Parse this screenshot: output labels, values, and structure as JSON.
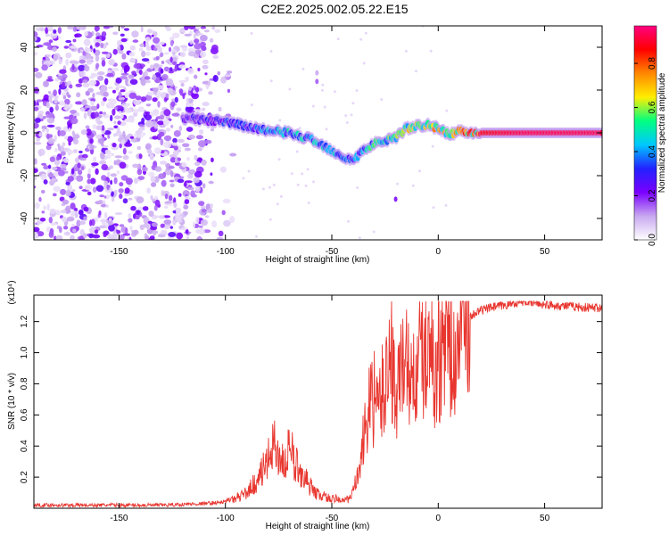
{
  "title": "C2E2.2025.002.05.22.E15",
  "colors": {
    "snr_line": "#e8362f",
    "colormap": [
      "#ffffff",
      "#c8a8f0",
      "#7a00ff",
      "#2222ff",
      "#00c8ff",
      "#00ff80",
      "#ffee00",
      "#ff8800",
      "#ff0000",
      "#ff0080"
    ]
  },
  "chart_data": [
    {
      "type": "heatmap",
      "xlabel": "Height of straight line (km)",
      "ylabel": "Frequency (Hz)",
      "xlim": [
        -190,
        77
      ],
      "ylim": [
        -50,
        50
      ],
      "xticks": [
        -150,
        -100,
        -50,
        0,
        50
      ],
      "yticks": [
        -40,
        -20,
        0,
        20,
        40
      ],
      "colorbar": {
        "label": "Normalized spectral amplitude",
        "range": [
          0,
          0.97
        ],
        "ticks": [
          0.0,
          0.2,
          0.4,
          0.6,
          0.8
        ]
      },
      "ridge": [
        {
          "x": -120,
          "y": 7,
          "a": 0.25
        },
        {
          "x": -110,
          "y": 6,
          "a": 0.3
        },
        {
          "x": -100,
          "y": 5,
          "a": 0.35
        },
        {
          "x": -90,
          "y": 3,
          "a": 0.4
        },
        {
          "x": -80,
          "y": 1,
          "a": 0.45
        },
        {
          "x": -70,
          "y": 0,
          "a": 0.5
        },
        {
          "x": -60,
          "y": -3,
          "a": 0.5
        },
        {
          "x": -50,
          "y": -8,
          "a": 0.5
        },
        {
          "x": -45,
          "y": -11,
          "a": 0.45
        },
        {
          "x": -40,
          "y": -13,
          "a": 0.4
        },
        {
          "x": -35,
          "y": -8,
          "a": 0.5
        },
        {
          "x": -30,
          "y": -5,
          "a": 0.55
        },
        {
          "x": -20,
          "y": -2,
          "a": 0.6
        },
        {
          "x": -15,
          "y": 2,
          "a": 0.65
        },
        {
          "x": -10,
          "y": 3,
          "a": 0.7
        },
        {
          "x": -5,
          "y": 4,
          "a": 0.7
        },
        {
          "x": 0,
          "y": 2,
          "a": 0.75
        },
        {
          "x": 5,
          "y": -1,
          "a": 0.7
        },
        {
          "x": 10,
          "y": 1,
          "a": 0.8
        },
        {
          "x": 20,
          "y": 0,
          "a": 0.9
        },
        {
          "x": 40,
          "y": 0,
          "a": 0.95
        },
        {
          "x": 77,
          "y": 0,
          "a": 0.95
        }
      ]
    },
    {
      "type": "line",
      "xlabel": "Height of straight line (km)",
      "ylabel": "SNR (10 * v/v)",
      "yscale_label": "(x10⁴)",
      "xlim": [
        -190,
        77
      ],
      "ylim": [
        0,
        1.37
      ],
      "xticks": [
        -150,
        -100,
        -50,
        0,
        50
      ],
      "yticks": [
        0.2,
        0.4,
        0.6,
        0.8,
        1.0,
        1.2
      ],
      "series": [
        {
          "x": [
            -190,
            -160,
            -130,
            -110,
            -100,
            -95,
            -90,
            -85,
            -80,
            -78,
            -75,
            -72,
            -70,
            -68,
            -65,
            -62,
            -60,
            -58,
            -55,
            -50,
            -45,
            -42,
            -40,
            -38,
            -36,
            -34,
            -32,
            -30,
            -28,
            -26,
            -24,
            -22,
            -20,
            -18,
            -16,
            -14,
            -12,
            -10,
            -8,
            -6,
            -4,
            -2,
            0,
            2,
            4,
            6,
            8,
            10,
            12,
            15,
            20,
            25,
            30,
            35,
            40,
            50,
            60,
            70,
            77
          ],
          "y": [
            0.02,
            0.02,
            0.02,
            0.03,
            0.04,
            0.06,
            0.1,
            0.18,
            0.3,
            0.42,
            0.35,
            0.28,
            0.38,
            0.3,
            0.25,
            0.18,
            0.14,
            0.1,
            0.08,
            0.06,
            0.05,
            0.06,
            0.1,
            0.2,
            0.35,
            0.55,
            0.65,
            0.7,
            0.62,
            0.75,
            0.88,
            1.0,
            0.7,
            0.85,
            0.9,
            0.95,
            0.78,
            0.88,
            1.02,
            0.95,
            1.05,
            0.9,
            1.0,
            0.95,
            1.1,
            1.05,
            0.85,
            1.15,
            1.2,
            1.24,
            1.27,
            1.29,
            1.3,
            1.32,
            1.33,
            1.31,
            1.3,
            1.29,
            1.29
          ]
        }
      ]
    }
  ]
}
